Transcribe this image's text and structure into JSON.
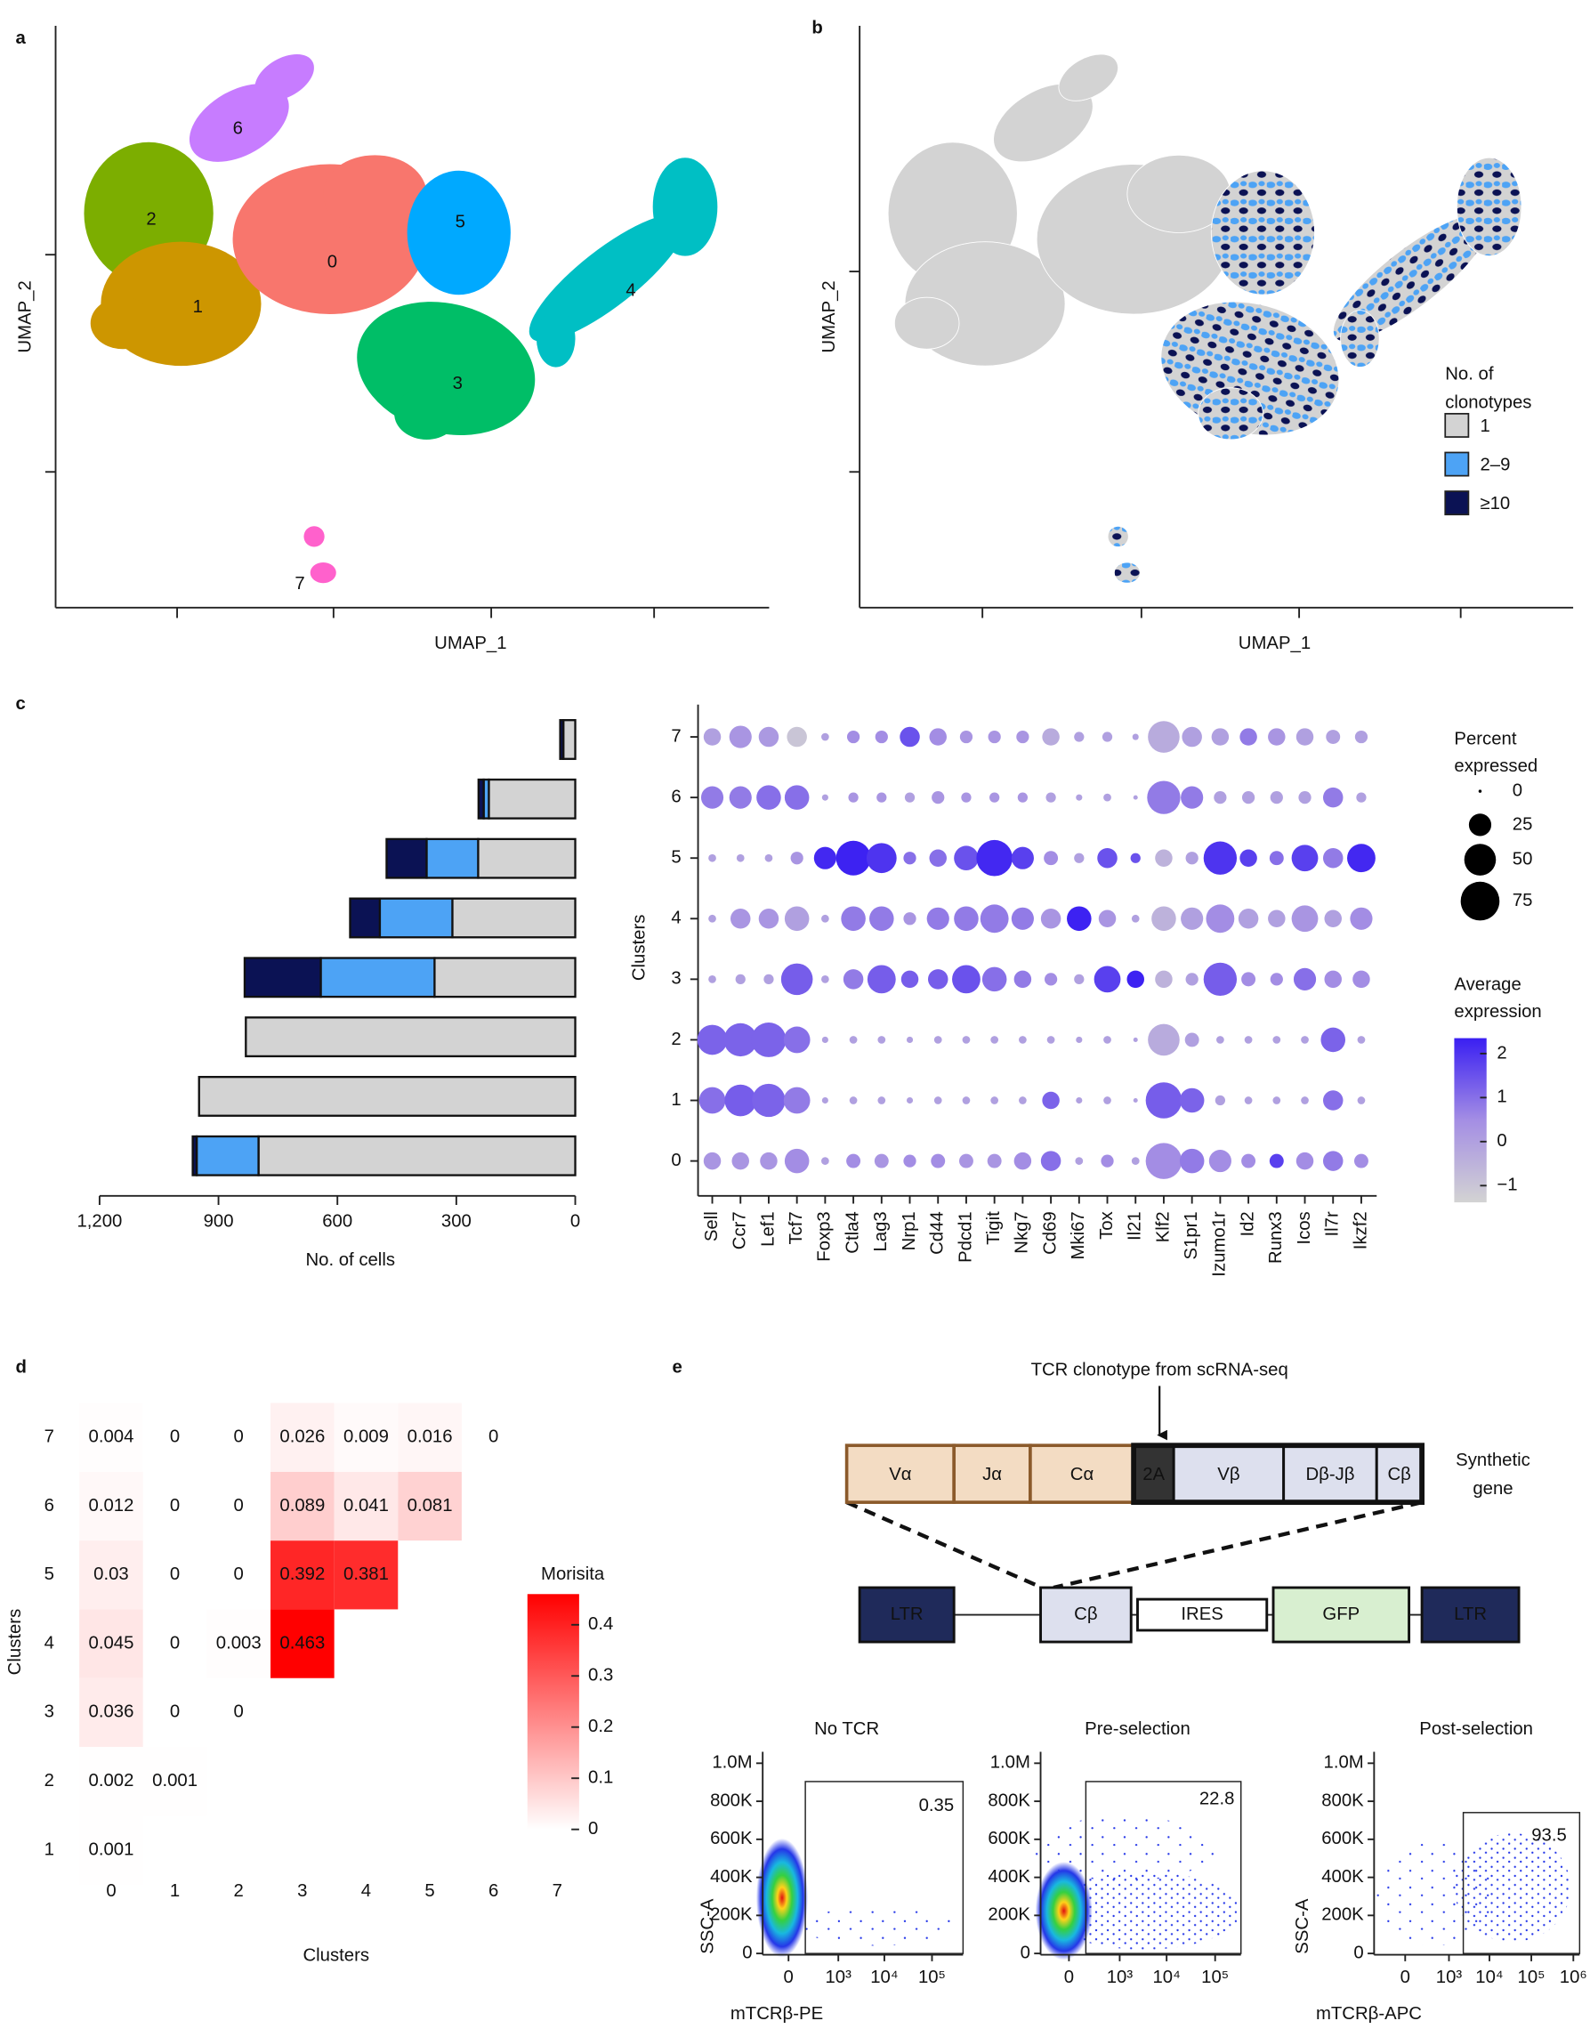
{
  "panel_letters": [
    "a",
    "b",
    "c",
    "d",
    "e"
  ],
  "chart_data": [
    {
      "type": "umap",
      "x_label": "UMAP_1",
      "y_label": "UMAP_2",
      "clusters": [
        "0",
        "1",
        "2",
        "3",
        "4",
        "5",
        "6",
        "7"
      ],
      "colors": [
        "#F8766D",
        "#CD9600",
        "#7CAE00",
        "#00BE67",
        "#00BFC4",
        "#00A9FF",
        "#C77CFF",
        "#FF61CC"
      ]
    },
    {
      "type": "umap_clonotype",
      "x_label": "UMAP_1",
      "y_label": "UMAP_2",
      "legend_title": [
        "No. of",
        "clonotypes"
      ],
      "legend": [
        {
          "name": "1",
          "color": "#d3d3d3"
        },
        {
          "name": "2–9",
          "color": "#4da3f5"
        },
        {
          "name": "≥10",
          "color": "#0b1254"
        }
      ]
    },
    {
      "type": "hbar_stacked",
      "categories": [
        "7",
        "6",
        "5",
        "4",
        "3",
        "2",
        "1",
        "0"
      ],
      "series": [
        {
          "color": "#d3d3d3",
          "values": [
            30,
            218,
            245,
            310,
            355,
            831,
            949,
            799
          ]
        },
        {
          "color": "#4da3f5",
          "values": [
            0,
            13,
            130,
            183,
            287,
            0,
            0,
            156
          ]
        },
        {
          "color": "#0b1254",
          "values": [
            8,
            13,
            101,
            75,
            192,
            0,
            0,
            10
          ]
        }
      ],
      "xlim": [
        1200,
        0
      ],
      "xticks": [
        {
          "value": 1200,
          "label": "1,200"
        },
        900,
        600,
        300,
        0
      ],
      "x_label": "No. of cells"
    },
    {
      "type": "dotplot",
      "genes": [
        "Sell",
        "Ccr7",
        "Lef1",
        "Tcf7",
        "Foxp3",
        "Ctla4",
        "Lag3",
        "Nrp1",
        "Cd44",
        "Pdcd1",
        "Tigit",
        "Nkg7",
        "Cd69",
        "Mki67",
        "Tox",
        "Il21",
        "Klf2",
        "S1pr1",
        "Izumo1r",
        "Id2",
        "Runx3",
        "Icos",
        "Il7r",
        "Ikzf2"
      ],
      "clusters": [
        "0",
        "1",
        "2",
        "3",
        "4",
        "5",
        "6",
        "7"
      ],
      "y_label": "Clusters",
      "percent": [
        [
          15,
          15,
          15,
          30,
          3,
          10,
          10,
          8,
          10,
          10,
          10,
          15,
          20,
          3,
          8,
          3,
          65,
          30,
          25,
          10,
          10,
          15,
          20,
          10
        ],
        [
          35,
          50,
          55,
          35,
          2,
          3,
          3,
          2,
          3,
          3,
          3,
          3,
          15,
          2,
          3,
          1,
          65,
          30,
          5,
          3,
          3,
          3,
          20,
          3
        ],
        [
          45,
          55,
          60,
          35,
          2,
          3,
          3,
          2,
          3,
          3,
          3,
          3,
          3,
          2,
          3,
          1,
          50,
          10,
          3,
          3,
          3,
          3,
          30,
          3
        ],
        [
          3,
          5,
          5,
          50,
          3,
          20,
          40,
          15,
          20,
          40,
          30,
          15,
          8,
          5,
          35,
          15,
          15,
          8,
          55,
          10,
          8,
          25,
          15,
          15
        ],
        [
          3,
          20,
          20,
          30,
          3,
          30,
          30,
          8,
          25,
          30,
          40,
          25,
          20,
          30,
          15,
          3,
          30,
          25,
          40,
          20,
          15,
          35,
          15,
          25
        ],
        [
          3,
          3,
          3,
          8,
          25,
          60,
          45,
          8,
          15,
          30,
          65,
          25,
          10,
          5,
          20,
          5,
          15,
          8,
          55,
          15,
          10,
          35,
          20,
          40
        ],
        [
          25,
          25,
          30,
          30,
          2,
          5,
          5,
          5,
          8,
          5,
          5,
          5,
          5,
          2,
          3,
          1,
          55,
          25,
          8,
          8,
          8,
          8,
          20,
          5
        ],
        [
          15,
          25,
          20,
          20,
          3,
          8,
          8,
          20,
          15,
          8,
          8,
          8,
          15,
          5,
          5,
          2,
          50,
          20,
          15,
          15,
          15,
          15,
          10,
          8
        ]
      ],
      "avg_expression": [
        [
          0.3,
          0.3,
          0.3,
          0.5,
          0,
          0.5,
          0.3,
          0.5,
          0.5,
          0.3,
          0.3,
          0.5,
          1,
          0,
          0.5,
          0,
          0.5,
          0.8,
          0.5,
          0.5,
          1.8,
          0.5,
          0.8,
          0.5
        ],
        [
          1,
          1.3,
          1.2,
          0.8,
          0,
          0,
          0,
          0,
          0,
          0,
          0,
          0,
          1.2,
          0,
          0,
          0,
          1.3,
          1.2,
          0,
          0,
          0,
          0,
          1,
          0
        ],
        [
          1.2,
          1.2,
          1.2,
          1,
          0,
          0,
          0,
          0,
          0,
          0,
          0,
          0,
          0,
          0,
          0,
          0,
          -0.3,
          0,
          0,
          0,
          0,
          0,
          1.2,
          0
        ],
        [
          0,
          0,
          0,
          1.3,
          0,
          0.8,
          1.3,
          1.3,
          1.3,
          1.5,
          1,
          0.8,
          0.5,
          0,
          1.8,
          2.3,
          -0.5,
          0,
          1.3,
          0.5,
          0.5,
          1,
          0.5,
          0.5
        ],
        [
          0,
          0.3,
          0.3,
          0,
          0,
          0.8,
          0.8,
          0.3,
          0.8,
          0.8,
          0.8,
          0.8,
          0.3,
          2.3,
          0.3,
          0,
          -0.5,
          0,
          0.5,
          0,
          0,
          0.3,
          0,
          0.5
        ],
        [
          0,
          0,
          0,
          0.3,
          2.2,
          2.3,
          2,
          1,
          1,
          1.5,
          2.2,
          1.8,
          0.5,
          0,
          1.5,
          1.5,
          -0.5,
          0,
          2,
          1.8,
          1,
          1.8,
          0.8,
          2.2
        ],
        [
          0.8,
          0.8,
          1,
          1,
          0,
          0.3,
          0.3,
          0,
          0.3,
          0.3,
          0.3,
          0.3,
          0,
          0,
          0,
          0,
          0.8,
          0.8,
          0,
          0,
          0,
          0,
          0.8,
          0
        ],
        [
          0,
          0.3,
          0.2,
          -1,
          0,
          0.5,
          0.5,
          1.5,
          0.5,
          0.3,
          0.3,
          0.3,
          -0.3,
          0,
          0,
          0,
          -0.3,
          0,
          0,
          0.8,
          0.3,
          0,
          0,
          0
        ]
      ],
      "size_legend": {
        "title": [
          "Percent",
          "expressed"
        ],
        "values": [
          0,
          25,
          50,
          75
        ]
      },
      "color_legend": {
        "title": [
          "Average",
          "expression"
        ],
        "ticks": [
          2,
          1,
          0,
          {
            "value": -1,
            "label": "−1"
          }
        ],
        "clim": [
          -1.38,
          2.35
        ],
        "color_stops": [
          "#d3d3d3",
          "#a48ee4",
          "#3a1ff2"
        ]
      }
    },
    {
      "type": "heatmap",
      "x_label": "Clusters",
      "y_label": "Clusters",
      "x_categories": [
        "0",
        "1",
        "2",
        "3",
        "4",
        "5",
        "6",
        "7"
      ],
      "y_categories": [
        "1",
        "2",
        "3",
        "4",
        "5",
        "6",
        "7"
      ],
      "values": [
        [
          0.001
        ],
        [
          0.002,
          0.001
        ],
        [
          0.036,
          0,
          0
        ],
        [
          0.045,
          0,
          0.003,
          0.463
        ],
        [
          0.03,
          0,
          0,
          0.392,
          0.381
        ],
        [
          0.012,
          0,
          0,
          0.089,
          0.041,
          0.081
        ],
        [
          0.004,
          0,
          0,
          0.026,
          0.009,
          0.016,
          0
        ]
      ],
      "legend_title": "Morisita",
      "clim": [
        0,
        0.46
      ],
      "ticks": [
        0,
        0.1,
        0.2,
        0.3,
        0.4
      ],
      "colors": [
        "#ffffff",
        "#ff0000"
      ]
    },
    {
      "type": "flow",
      "title": "No TCR",
      "gate_value": 0.35,
      "y_label": "SSC-A",
      "x_label": "mTCRβ-PE",
      "ylim": [
        -7000,
        1060000
      ],
      "yticks": [
        {
          "value": 1000000,
          "label": "1.0M"
        },
        {
          "value": 800000,
          "label": "800K"
        },
        {
          "value": 600000,
          "label": "600K"
        },
        {
          "value": 400000,
          "label": "400K"
        },
        {
          "value": 200000,
          "label": "200K"
        },
        0
      ],
      "xlim": [
        -247,
        446000
      ],
      "xticks": [
        0,
        {
          "value": 1000,
          "label": "10³"
        },
        {
          "value": 10000,
          "label": "10⁴"
        },
        {
          "value": 100000,
          "label": "10⁵"
        }
      ]
    },
    {
      "type": "flow",
      "title": "Pre-selection",
      "gate_value": 22.8,
      "ylim": [
        -7000,
        1060000
      ],
      "yticks": [
        {
          "value": 1000000,
          "label": "1.0M"
        },
        {
          "value": 800000,
          "label": "800K"
        },
        {
          "value": 600000,
          "label": "600K"
        },
        {
          "value": 400000,
          "label": "400K"
        },
        {
          "value": 200000,
          "label": "200K"
        },
        0
      ],
      "xlim": [
        -282,
        339000
      ],
      "xticks": [
        0,
        {
          "value": 1000,
          "label": "10³"
        },
        {
          "value": 10000,
          "label": "10⁴"
        },
        {
          "value": 100000,
          "label": "10⁵"
        }
      ]
    },
    {
      "type": "flow",
      "title": "Post-selection",
      "gate_value": 93.5,
      "y_label": "SSC-A",
      "x_label": "mTCRβ-APC",
      "ylim": [
        -7000,
        1060000
      ],
      "yticks": [
        {
          "value": 1000000,
          "label": "1.0M"
        },
        {
          "value": 800000,
          "label": "800K"
        },
        {
          "value": 600000,
          "label": "600K"
        },
        {
          "value": 400000,
          "label": "400K"
        },
        {
          "value": 200000,
          "label": "200K"
        },
        0
      ],
      "xlim": [
        -449,
        1410000
      ],
      "xticks": [
        0,
        {
          "value": 1000,
          "label": "10³"
        },
        {
          "value": 10000,
          "label": "10⁴"
        },
        {
          "value": 100000,
          "label": "10⁵"
        },
        {
          "value": 1000000,
          "label": "10⁶"
        }
      ]
    }
  ],
  "diagram": {
    "annotation": "TCR clonotype from scRNA-seq",
    "synthetic_gene": [
      "Vα",
      "Jα",
      "Cα",
      "2A",
      "Vβ",
      "Dβ-Jβ",
      "Cβ"
    ],
    "synthetic_label": [
      "Synthetic",
      "gene"
    ],
    "vector": [
      "LTR",
      "Cβ",
      "IRES",
      "GFP",
      "LTR"
    ]
  }
}
